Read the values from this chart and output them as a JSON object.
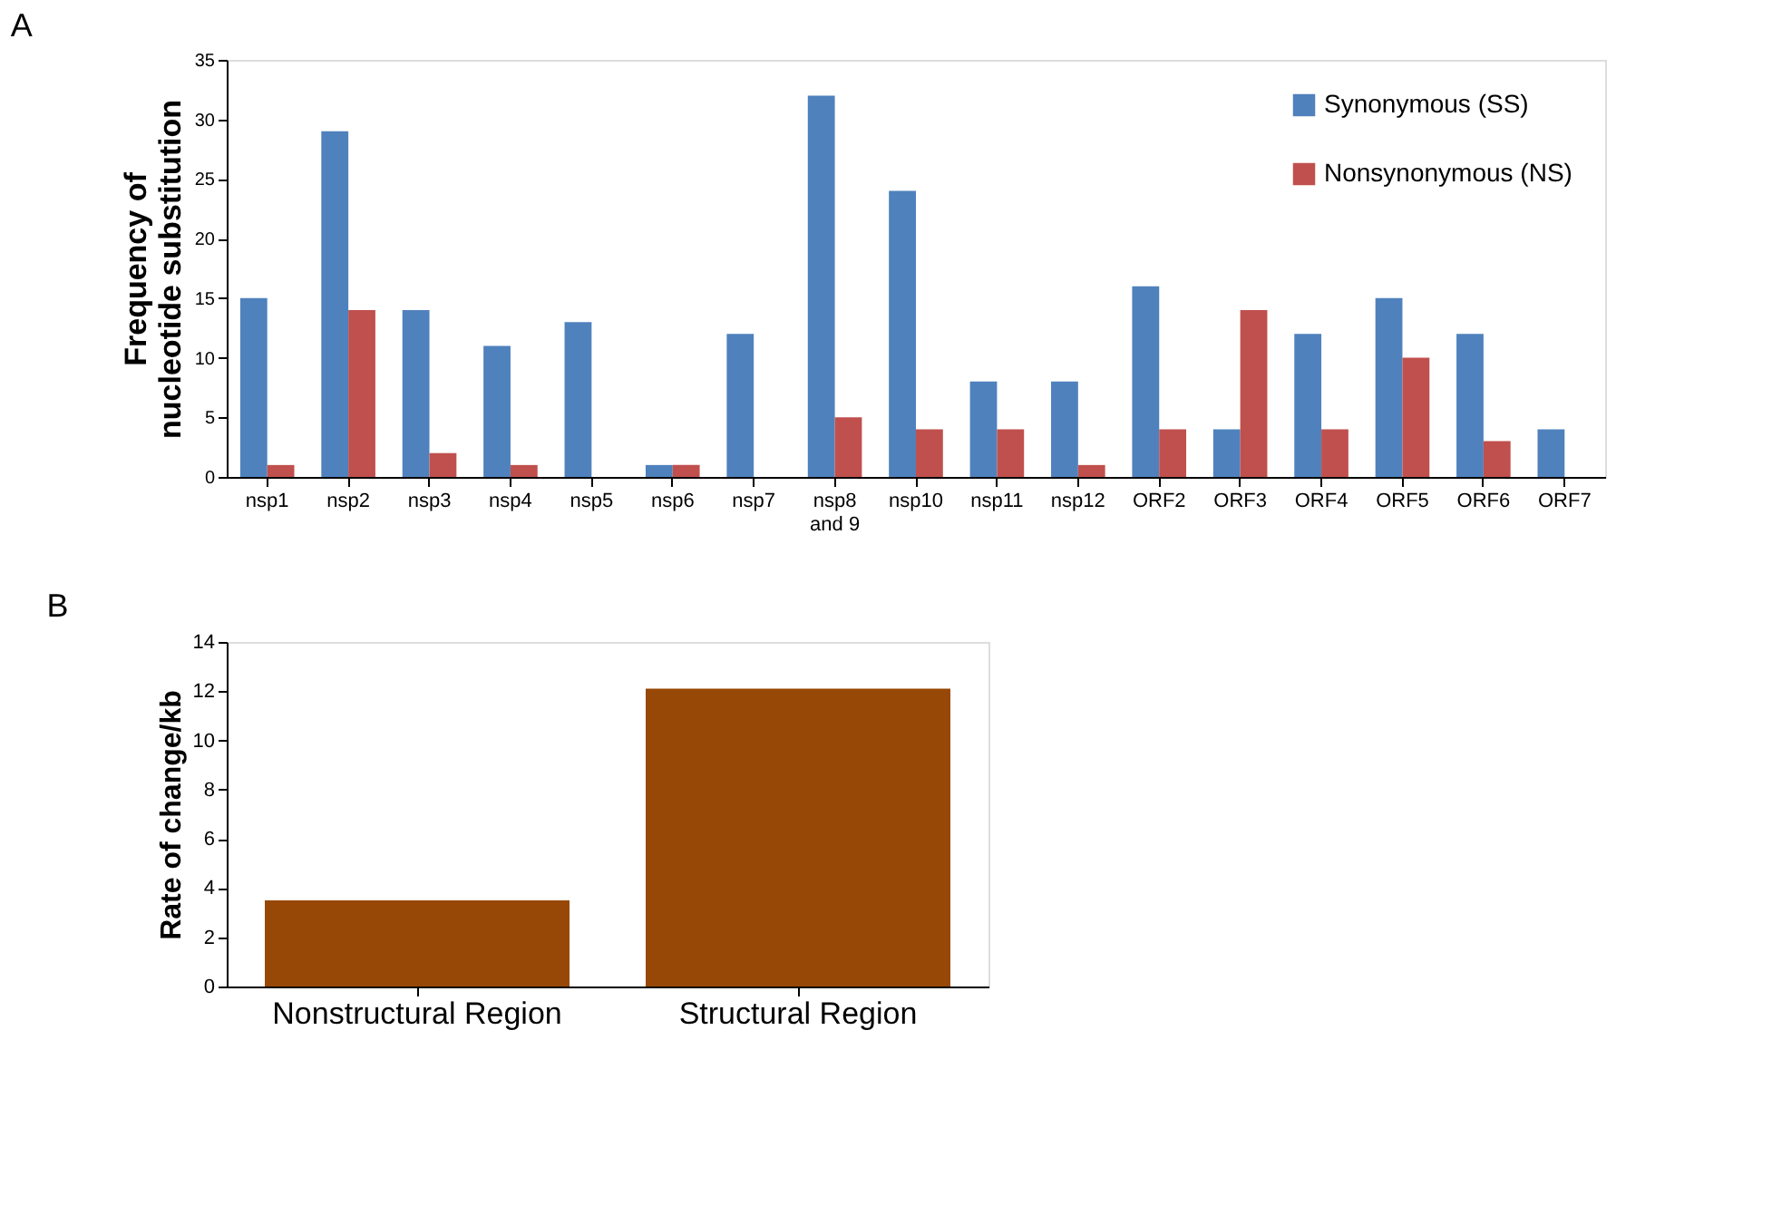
{
  "chart_data": [
    {
      "type": "bar",
      "title": "A",
      "ylabel": "Frequency of nucleotide substitution",
      "categories": [
        "nsp1",
        "nsp2",
        "nsp3",
        "nsp4",
        "nsp5",
        "nsp6",
        "nsp7",
        "nsp8 and 9",
        "nsp10",
        "nsp11",
        "nsp12",
        "ORF2",
        "ORF3",
        "ORF4",
        "ORF5",
        "ORF6",
        "ORF7"
      ],
      "series": [
        {
          "name": "Synonymous (SS)",
          "color": "#4f81bd",
          "values": [
            15,
            29,
            14,
            11,
            13,
            1,
            12,
            32,
            24,
            8,
            8,
            16,
            4,
            12,
            15,
            12,
            4
          ]
        },
        {
          "name": "Nonsynonymous (NS)",
          "color": "#c0504d",
          "values": [
            1,
            14,
            2,
            1,
            0,
            1,
            0,
            5,
            4,
            4,
            1,
            4,
            14,
            4,
            10,
            3,
            0
          ]
        }
      ],
      "ylim": [
        0,
        35
      ],
      "yticks": [
        0,
        5,
        10,
        15,
        20,
        25,
        30,
        35
      ],
      "grid": false,
      "legend": "top right"
    },
    {
      "type": "bar",
      "title": "B",
      "ylabel": "Rate of change/kb",
      "categories": [
        "Nonstructural Region",
        "Structural Region"
      ],
      "values": [
        3.5,
        12.1
      ],
      "color": "#974806",
      "ylim": [
        0,
        14
      ],
      "yticks": [
        0,
        2,
        4,
        6,
        8,
        10,
        12,
        14
      ],
      "grid": false
    }
  ]
}
